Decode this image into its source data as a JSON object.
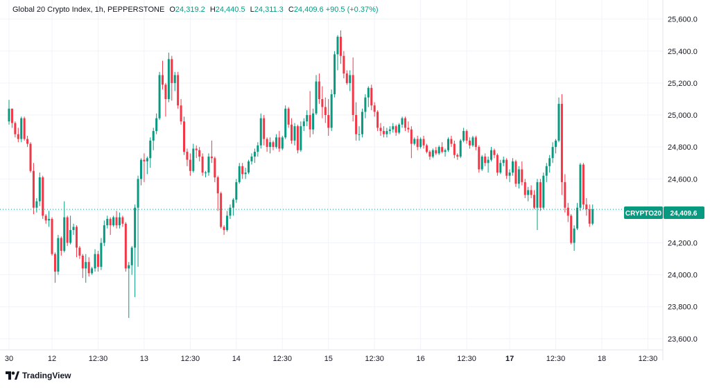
{
  "header": {
    "symbol_title": "Global 20 Crypto Index, 1h, PEPPERSTONE",
    "open_label": "O",
    "open_value": "24,319.2",
    "high_label": "H",
    "high_value": "24,440.5",
    "low_label": "L",
    "low_value": "24,311.3",
    "close_label": "C",
    "close_value": "24,409.6",
    "change": "+90.5 (+0.37%)"
  },
  "footer": {
    "brand": "TradingView"
  },
  "colors": {
    "up": "#089981",
    "down": "#F23645",
    "grid": "#F0F3FA",
    "text": "#131722",
    "last_price_bg": "#089981"
  },
  "chart_data": {
    "type": "candlestick",
    "title": "Global 20 Crypto Index, 1h, PEPPERSTONE",
    "ylim": [
      23530,
      25720
    ],
    "y_ticks": [
      "25,600.0",
      "25,400.0",
      "25,200.0",
      "25,000.0",
      "24,800.0",
      "24,600.0",
      "24,400.0",
      "24,200.0",
      "24,000.0",
      "23,800.0",
      "23,600.0"
    ],
    "y_tick_values": [
      25600,
      25400,
      25200,
      25000,
      24800,
      24600,
      24400,
      24200,
      24000,
      23800,
      23600
    ],
    "x_labels": [
      {
        "label": "30",
        "index": 0,
        "bold": false
      },
      {
        "label": "12",
        "index": 14,
        "bold": false
      },
      {
        "label": "12:30",
        "index": 29,
        "bold": false
      },
      {
        "label": "13",
        "index": 44,
        "bold": false
      },
      {
        "label": "12:30",
        "index": 59,
        "bold": false
      },
      {
        "label": "14",
        "index": 74,
        "bold": false
      },
      {
        "label": "12:30",
        "index": 89,
        "bold": false
      },
      {
        "label": "15",
        "index": 104,
        "bold": false
      },
      {
        "label": "12:30",
        "index": 119,
        "bold": false
      },
      {
        "label": "16",
        "index": 134,
        "bold": false
      },
      {
        "label": "12:30",
        "index": 149,
        "bold": false
      },
      {
        "label": "17",
        "index": 163,
        "bold": true
      },
      {
        "label": "12:30",
        "index": 178,
        "bold": false
      },
      {
        "label": "18",
        "index": 193,
        "bold": false
      },
      {
        "label": "12:30",
        "index": 208,
        "bold": false
      }
    ],
    "last_price": {
      "symbol": "CRYPTO20",
      "value": 24409.6,
      "label": "24,409.6"
    },
    "candles": [
      [
        24960,
        25095,
        24940,
        25040
      ],
      [
        25040,
        25040,
        24920,
        24950
      ],
      [
        24950,
        24960,
        24860,
        24880
      ],
      [
        24880,
        24920,
        24830,
        24850
      ],
      [
        24850,
        24990,
        24830,
        24980
      ],
      [
        24980,
        24990,
        24840,
        24850
      ],
      [
        24850,
        24870,
        24800,
        24820
      ],
      [
        24820,
        24830,
        24640,
        24650
      ],
      [
        24650,
        24700,
        24380,
        24420
      ],
      [
        24420,
        24480,
        24390,
        24460
      ],
      [
        24460,
        24640,
        24430,
        24610
      ],
      [
        24610,
        24620,
        24350,
        24370
      ],
      [
        24370,
        24380,
        24320,
        24340
      ],
      [
        24340,
        24400,
        24300,
        24350
      ],
      [
        24350,
        24360,
        24120,
        24130
      ],
      [
        24130,
        24140,
        23950,
        24020
      ],
      [
        24020,
        24250,
        24000,
        24230
      ],
      [
        24230,
        24240,
        24120,
        24150
      ],
      [
        24150,
        24460,
        24140,
        24360
      ],
      [
        24360,
        24370,
        24180,
        24200
      ],
      [
        24200,
        24370,
        24190,
        24280
      ],
      [
        24280,
        24320,
        24250,
        24300
      ],
      [
        24300,
        24310,
        24110,
        24170
      ],
      [
        24170,
        24180,
        24100,
        24120
      ],
      [
        24120,
        24130,
        23980,
        24040
      ],
      [
        24040,
        24130,
        23950,
        24080
      ],
      [
        24080,
        24110,
        23990,
        24010
      ],
      [
        24010,
        24050,
        24000,
        24040
      ],
      [
        24040,
        24160,
        24020,
        24130
      ],
      [
        24130,
        24150,
        24020,
        24050
      ],
      [
        24050,
        24230,
        24030,
        24200
      ],
      [
        24200,
        24340,
        24180,
        24310
      ],
      [
        24310,
        24370,
        24290,
        24350
      ],
      [
        24350,
        24360,
        24250,
        24310
      ],
      [
        24310,
        24370,
        24300,
        24360
      ],
      [
        24360,
        24400,
        24290,
        24310
      ],
      [
        24310,
        24390,
        24290,
        24360
      ],
      [
        24360,
        24370,
        24300,
        24320
      ],
      [
        24320,
        24330,
        24020,
        24040
      ],
      [
        24040,
        24080,
        23730,
        24060
      ],
      [
        24060,
        24180,
        24000,
        24170
      ],
      [
        24170,
        24440,
        23860,
        24420
      ],
      [
        24420,
        24620,
        24050,
        24600
      ],
      [
        24600,
        24730,
        24560,
        24720
      ],
      [
        24720,
        24760,
        24580,
        24710
      ],
      [
        24710,
        24740,
        24630,
        24730
      ],
      [
        24730,
        24860,
        24670,
        24840
      ],
      [
        24840,
        24920,
        24780,
        24900
      ],
      [
        24900,
        25010,
        24880,
        24980
      ],
      [
        24980,
        25270,
        24970,
        25250
      ],
      [
        25250,
        25340,
        25160,
        25190
      ],
      [
        25190,
        25200,
        24990,
        25100
      ],
      [
        25100,
        25390,
        25080,
        25350
      ],
      [
        25350,
        25370,
        25090,
        25200
      ],
      [
        25200,
        25270,
        25150,
        25250
      ],
      [
        25250,
        25270,
        25040,
        25060
      ],
      [
        25060,
        25100,
        24940,
        24960
      ],
      [
        24960,
        24990,
        24750,
        24770
      ],
      [
        24770,
        24790,
        24680,
        24720
      ],
      [
        24720,
        24760,
        24620,
        24650
      ],
      [
        24650,
        24820,
        24640,
        24790
      ],
      [
        24790,
        24810,
        24730,
        24780
      ],
      [
        24780,
        24800,
        24710,
        24740
      ],
      [
        24740,
        24760,
        24620,
        24640
      ],
      [
        24640,
        24650,
        24610,
        24640
      ],
      [
        24640,
        24760,
        24620,
        24740
      ],
      [
        24740,
        24840,
        24700,
        24730
      ],
      [
        24730,
        24740,
        24580,
        24610
      ],
      [
        24610,
        24620,
        24400,
        24510
      ],
      [
        24510,
        24520,
        24290,
        24300
      ],
      [
        24300,
        24310,
        24250,
        24280
      ],
      [
        24280,
        24400,
        24270,
        24370
      ],
      [
        24370,
        24440,
        24350,
        24420
      ],
      [
        24420,
        24480,
        24370,
        24470
      ],
      [
        24470,
        24600,
        24450,
        24580
      ],
      [
        24580,
        24700,
        24570,
        24680
      ],
      [
        24680,
        24700,
        24600,
        24630
      ],
      [
        24630,
        24670,
        24600,
        24640
      ],
      [
        24640,
        24720,
        24630,
        24710
      ],
      [
        24710,
        24760,
        24690,
        24740
      ],
      [
        24740,
        24790,
        24700,
        24770
      ],
      [
        24770,
        24830,
        24740,
        24810
      ],
      [
        24810,
        25010,
        24790,
        24980
      ],
      [
        24980,
        25000,
        24810,
        24850
      ],
      [
        24850,
        24860,
        24770,
        24800
      ],
      [
        24800,
        24860,
        24760,
        24830
      ],
      [
        24830,
        24840,
        24780,
        24800
      ],
      [
        24800,
        24880,
        24790,
        24860
      ],
      [
        24860,
        24900,
        24770,
        24790
      ],
      [
        24790,
        24870,
        24780,
        24860
      ],
      [
        24860,
        25060,
        24850,
        25040
      ],
      [
        25040,
        25050,
        24920,
        24940
      ],
      [
        24940,
        24980,
        24820,
        24840
      ],
      [
        24840,
        24950,
        24810,
        24930
      ],
      [
        24930,
        24940,
        24760,
        24780
      ],
      [
        24780,
        24960,
        24770,
        24930
      ],
      [
        24930,
        24980,
        24900,
        24960
      ],
      [
        24960,
        25030,
        24930,
        25000
      ],
      [
        25000,
        25150,
        24860,
        24910
      ],
      [
        24910,
        25040,
        24880,
        25010
      ],
      [
        25010,
        25250,
        25000,
        25210
      ],
      [
        25210,
        25260,
        25070,
        25100
      ],
      [
        25100,
        25180,
        24980,
        25050
      ],
      [
        25050,
        25110,
        24950,
        25000
      ],
      [
        25000,
        25100,
        24870,
        24920
      ],
      [
        24920,
        25160,
        24900,
        25130
      ],
      [
        25130,
        25400,
        25110,
        25380
      ],
      [
        25380,
        25500,
        25280,
        25490
      ],
      [
        25490,
        25530,
        25320,
        25370
      ],
      [
        25370,
        25400,
        25230,
        25260
      ],
      [
        25260,
        25280,
        25190,
        25200
      ],
      [
        25200,
        25280,
        25150,
        25250
      ],
      [
        25250,
        25360,
        24960,
        25000
      ],
      [
        25000,
        25080,
        24840,
        24880
      ],
      [
        24880,
        24930,
        24840,
        24880
      ],
      [
        24880,
        25040,
        24860,
        25020
      ],
      [
        25020,
        25130,
        24980,
        25110
      ],
      [
        25110,
        25180,
        25050,
        25170
      ],
      [
        25170,
        25190,
        25030,
        25060
      ],
      [
        25060,
        25080,
        24990,
        25020
      ],
      [
        25020,
        25030,
        24900,
        24920
      ],
      [
        24920,
        24950,
        24870,
        24900
      ],
      [
        24900,
        24930,
        24860,
        24880
      ],
      [
        24880,
        24920,
        24860,
        24900
      ],
      [
        24900,
        24930,
        24880,
        24910
      ],
      [
        24910,
        24950,
        24890,
        24930
      ],
      [
        24930,
        24940,
        24870,
        24890
      ],
      [
        24890,
        24950,
        24880,
        24940
      ],
      [
        24940,
        24990,
        24920,
        24980
      ],
      [
        24980,
        24990,
        24900,
        24920
      ],
      [
        24920,
        24960,
        24890,
        24910
      ],
      [
        24910,
        24930,
        24730,
        24820
      ],
      [
        24820,
        24860,
        24810,
        24850
      ],
      [
        24850,
        24870,
        24780,
        24800
      ],
      [
        24800,
        24860,
        24790,
        24850
      ],
      [
        24850,
        24870,
        24790,
        24810
      ],
      [
        24810,
        24820,
        24760,
        24770
      ],
      [
        24770,
        24780,
        24720,
        24740
      ],
      [
        24740,
        24790,
        24730,
        24780
      ],
      [
        24780,
        24800,
        24750,
        24760
      ],
      [
        24760,
        24810,
        24750,
        24800
      ],
      [
        24800,
        24830,
        24760,
        24770
      ],
      [
        24770,
        24790,
        24740,
        24780
      ],
      [
        24780,
        24860,
        24770,
        24850
      ],
      [
        24850,
        24870,
        24800,
        24820
      ],
      [
        24820,
        24840,
        24730,
        24750
      ],
      [
        24750,
        24760,
        24720,
        24740
      ],
      [
        24740,
        24850,
        24730,
        24840
      ],
      [
        24840,
        24920,
        24830,
        24900
      ],
      [
        24900,
        24910,
        24820,
        24840
      ],
      [
        24840,
        24860,
        24790,
        24810
      ],
      [
        24810,
        24870,
        24800,
        24860
      ],
      [
        24860,
        24870,
        24780,
        24800
      ],
      [
        24800,
        24810,
        24640,
        24660
      ],
      [
        24660,
        24750,
        24650,
        24740
      ],
      [
        24740,
        24760,
        24680,
        24700
      ],
      [
        24700,
        24740,
        24640,
        24720
      ],
      [
        24720,
        24800,
        24710,
        24780
      ],
      [
        24780,
        24790,
        24730,
        24750
      ],
      [
        24750,
        24760,
        24620,
        24640
      ],
      [
        24640,
        24720,
        24630,
        24700
      ],
      [
        24700,
        24740,
        24680,
        24720
      ],
      [
        24720,
        24730,
        24600,
        24620
      ],
      [
        24620,
        24660,
        24580,
        24640
      ],
      [
        24640,
        24730,
        24620,
        24710
      ],
      [
        24710,
        24720,
        24550,
        24570
      ],
      [
        24570,
        24680,
        24540,
        24660
      ],
      [
        24660,
        24710,
        24560,
        24580
      ],
      [
        24580,
        24600,
        24480,
        24500
      ],
      [
        24500,
        24550,
        24460,
        24530
      ],
      [
        24530,
        24560,
        24480,
        24500
      ],
      [
        24500,
        24530,
        24410,
        24420
      ],
      [
        24420,
        24600,
        24280,
        24580
      ],
      [
        24580,
        24600,
        24400,
        24420
      ],
      [
        24420,
        24640,
        24410,
        24620
      ],
      [
        24620,
        24700,
        24580,
        24680
      ],
      [
        24680,
        24750,
        24640,
        24730
      ],
      [
        24730,
        24830,
        24700,
        24800
      ],
      [
        24800,
        24850,
        24760,
        24840
      ],
      [
        24840,
        25110,
        24830,
        25070
      ],
      [
        25070,
        25130,
        24500,
        24580
      ],
      [
        24580,
        24630,
        24390,
        24420
      ],
      [
        24420,
        24450,
        24330,
        24370
      ],
      [
        24370,
        24380,
        24190,
        24200
      ],
      [
        24200,
        24310,
        24150,
        24290
      ],
      [
        24290,
        24450,
        24280,
        24420
      ],
      [
        24420,
        24700,
        24400,
        24690
      ],
      [
        24690,
        24700,
        24410,
        24440
      ],
      [
        24440,
        24480,
        24370,
        24410
      ],
      [
        24410,
        24440,
        24300,
        24320
      ],
      [
        24320,
        24440,
        24310,
        24410
      ]
    ]
  }
}
